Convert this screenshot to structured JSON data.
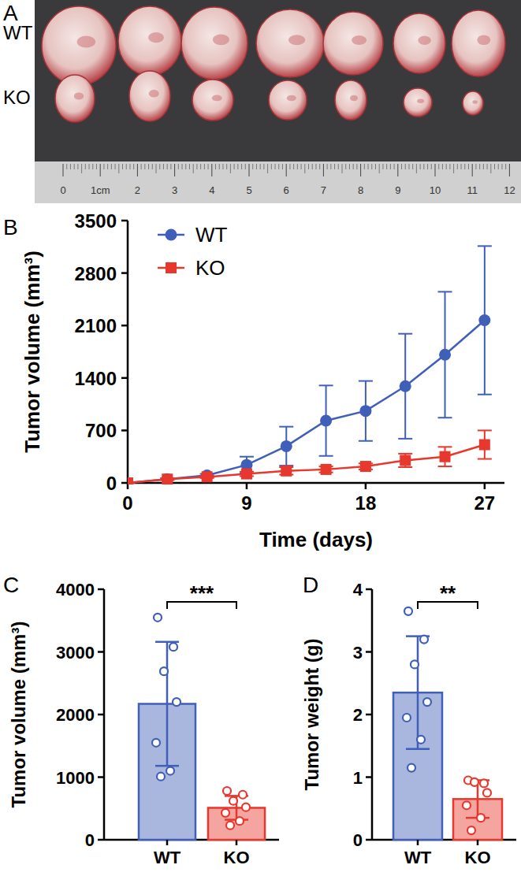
{
  "photo": {
    "panel_label": "A",
    "rows": [
      "WT",
      "KO"
    ],
    "ruler_labels": [
      "0",
      "1cm",
      "2",
      "3",
      "4",
      "5",
      "6",
      "7",
      "8",
      "9",
      "10",
      "11",
      "12"
    ]
  },
  "chart_data": [
    {
      "type": "line",
      "panel_label": "B",
      "x_label": "Time (days)",
      "y_label": "Tumor volume (mm³)",
      "x": [
        0,
        3,
        6,
        9,
        12,
        15,
        18,
        21,
        24,
        27
      ],
      "xlim": [
        0,
        28.5
      ],
      "xticks": [
        0,
        9,
        18,
        27
      ],
      "ylim": [
        0,
        3500
      ],
      "yticks": [
        0,
        700,
        1400,
        2100,
        2800,
        3500
      ],
      "legend": "upper left",
      "series": [
        {
          "name": "WT",
          "color": "#3f5fb8",
          "marker": "circle",
          "line_style": "solid",
          "values": [
            0,
            50,
            100,
            240,
            490,
            830,
            960,
            1290,
            1710,
            2170
          ],
          "error": [
            0,
            10,
            20,
            110,
            260,
            470,
            400,
            700,
            840,
            990
          ]
        },
        {
          "name": "KO",
          "color": "#e8372c",
          "marker": "square",
          "line_style": "solid",
          "values": [
            0,
            50,
            80,
            120,
            160,
            180,
            220,
            300,
            350,
            510
          ],
          "error": [
            0,
            10,
            15,
            30,
            50,
            40,
            40,
            90,
            130,
            190
          ]
        }
      ]
    },
    {
      "type": "bar",
      "panel_label": "C",
      "y_label": "Tumor volume (mm³)",
      "annotation": "***",
      "categories": [
        "WT",
        "KO"
      ],
      "values": [
        2170,
        510
      ],
      "error": [
        990,
        190
      ],
      "points": [
        [
          3550,
          3080,
          2690,
          2200,
          1550,
          1100,
          1010
        ],
        [
          780,
          720,
          620,
          520,
          430,
          300,
          230
        ]
      ],
      "colors": [
        "#3f5fb8",
        "#e8372c"
      ],
      "ylim": [
        0,
        4000
      ],
      "yticks": [
        0,
        1000,
        2000,
        3000,
        4000
      ]
    },
    {
      "type": "bar",
      "panel_label": "D",
      "y_label": "Tumor weight (g)",
      "annotation": "**",
      "categories": [
        "WT",
        "KO"
      ],
      "values": [
        2.35,
        0.65
      ],
      "error": [
        0.9,
        0.3
      ],
      "points": [
        [
          3.65,
          3.2,
          2.8,
          2.2,
          1.95,
          1.6,
          1.15
        ],
        [
          0.95,
          0.9,
          0.92,
          0.75,
          0.55,
          0.35,
          0.15
        ]
      ],
      "colors": [
        "#3f5fb8",
        "#e8372c"
      ],
      "ylim": [
        0,
        4
      ],
      "yticks": [
        0,
        1,
        2,
        3,
        4
      ]
    }
  ]
}
